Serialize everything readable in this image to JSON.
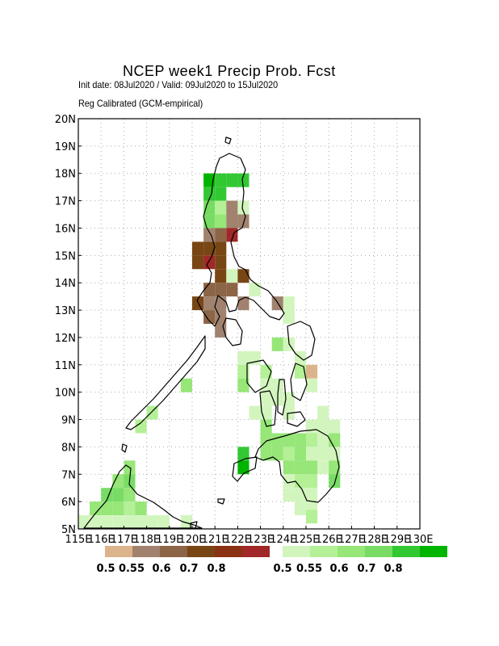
{
  "header": {
    "title": "NCEP week1 Precip Prob. Fcst",
    "subtitle1": "Init date: 08Jul2020 / Valid: 09Jul2020 to 15Jul2020",
    "subtitle2": "Reg Calibrated (GCM-empirical)"
  },
  "axes": {
    "y_ticks": [
      "20N",
      "19N",
      "18N",
      "17N",
      "16N",
      "15N",
      "14N",
      "13N",
      "12N",
      "11N",
      "10N",
      "9N",
      "8N",
      "7N",
      "6N",
      "5N"
    ],
    "x_ticks": [
      "115E",
      "116E",
      "117E",
      "118E",
      "119E",
      "120E",
      "121E",
      "122E",
      "123E",
      "124E",
      "125E",
      "126E",
      "127E",
      "128E",
      "129E",
      "130E"
    ]
  },
  "legend": {
    "below": {
      "colors": [
        "#dcb48c",
        "#a0826e",
        "#8c6446",
        "#784614",
        "#8c3214",
        "#a02828"
      ],
      "labels": [
        "0.5",
        "0.55",
        "0.6",
        "0.7",
        "0.8"
      ]
    },
    "above": {
      "colors": [
        "#d2f5be",
        "#b4f096",
        "#96e678",
        "#78dc64",
        "#32c832",
        "#00b400"
      ],
      "labels": [
        "0.5",
        "0.55",
        "0.6",
        "0.7",
        "0.8"
      ]
    }
  }
}
